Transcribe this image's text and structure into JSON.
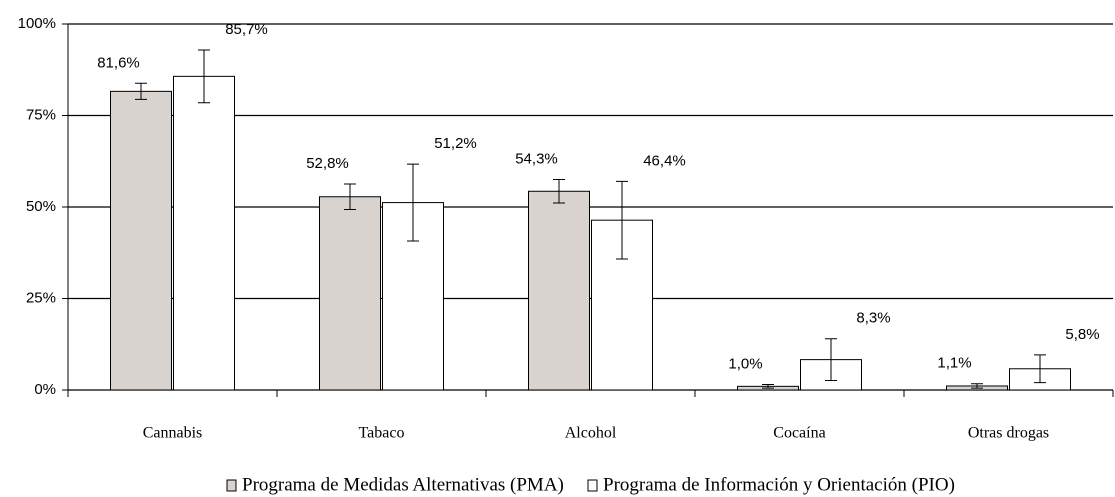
{
  "chart_data": {
    "type": "bar",
    "categories": [
      "Cannabis",
      "Tabaco",
      "Alcohol",
      "Cocaína",
      "Otras drogas"
    ],
    "series": [
      {
        "name": "Programa de Medidas Alternativas (PMA)",
        "color": "#d9d3cf",
        "values": [
          81.6,
          52.8,
          54.3,
          1.0,
          1.1
        ],
        "value_labels": [
          "81,6%",
          "52,8%",
          "54,3%",
          "1,0%",
          "1,1%"
        ],
        "errors": [
          2.2,
          3.5,
          3.2,
          0.5,
          0.6
        ]
      },
      {
        "name": "Programa de Información y Orientación (PIO)",
        "color": "#ffffff",
        "values": [
          85.7,
          51.2,
          46.4,
          8.3,
          5.8
        ],
        "value_labels": [
          "85,7%",
          "51,2%",
          "46,4%",
          "8,3%",
          "5,8%"
        ],
        "errors": [
          7.2,
          10.5,
          10.6,
          5.7,
          3.8
        ]
      }
    ],
    "ylim": [
      0,
      100
    ],
    "yticks": [
      {
        "value": 0,
        "label": "0%"
      },
      {
        "value": 25,
        "label": "25%"
      },
      {
        "value": 50,
        "label": "50%"
      },
      {
        "value": 75,
        "label": "75%"
      },
      {
        "value": 100,
        "label": "100%"
      }
    ],
    "grid": true,
    "legend": "bottom"
  }
}
